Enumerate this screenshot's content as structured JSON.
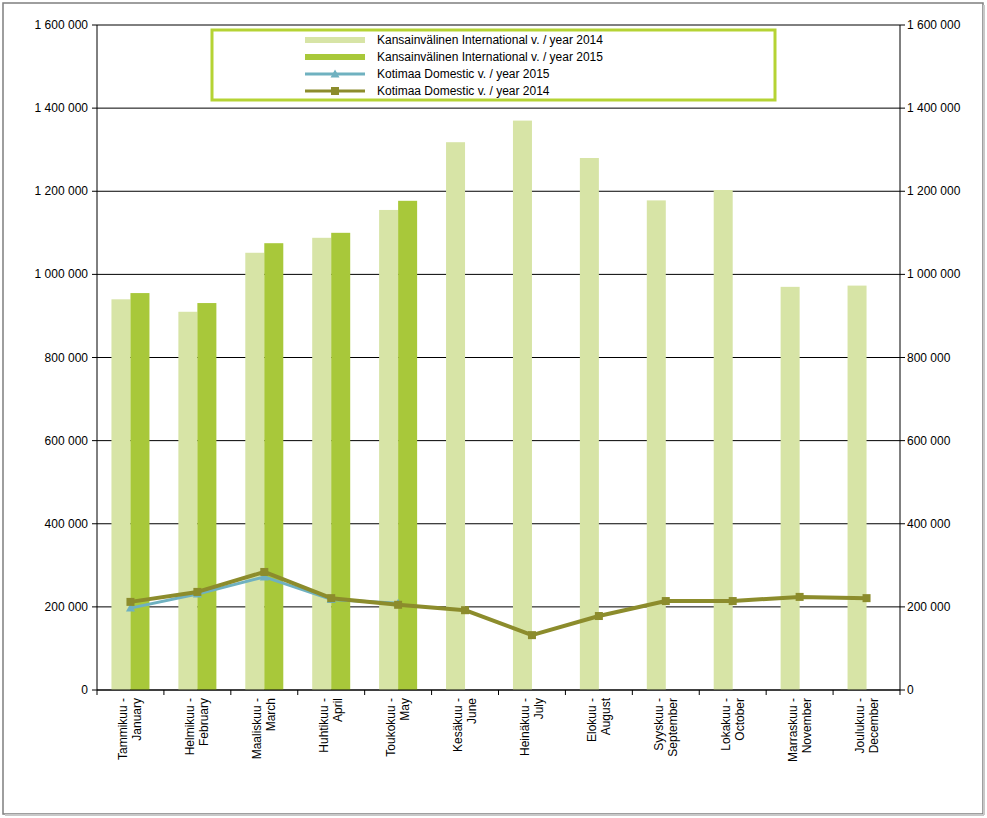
{
  "chart_data": {
    "type": "bar",
    "categories": [
      "Tammikuu - January",
      "Helmikuu - February",
      "Maaliskuu - March",
      "Huhtikuu - April",
      "Toukokuu - May",
      "Kesäkuu - June",
      "Heinäkuu - July",
      "Elokuu - August",
      "Syyskuu - September",
      "Lokakuu - October",
      "Marraskuu - November",
      "Joulukuu - December"
    ],
    "series": [
      {
        "name": "Kansainvälinen International v. / year 2014",
        "type": "bar",
        "color": "#d7e4a6",
        "values": [
          940000,
          910000,
          1052000,
          1088000,
          1155000,
          1318000,
          1370000,
          1280000,
          1178000,
          1203000,
          970000,
          973000
        ]
      },
      {
        "name": "Kansainvälinen International v. / year 2015",
        "type": "bar",
        "color": "#a8c83a",
        "values": [
          955000,
          931000,
          1075000,
          1100000,
          1177000,
          null,
          null,
          null,
          null,
          null,
          null,
          null
        ]
      },
      {
        "name": "Kotimaa Domestic v. / year 2015",
        "type": "line",
        "color": "#6fb1c0",
        "marker": "triangle",
        "values": [
          197000,
          231000,
          272000,
          218000,
          209000,
          null,
          null,
          null,
          null,
          null,
          null,
          null
        ]
      },
      {
        "name": "Kotimaa Domestic v. / year 2014",
        "type": "line",
        "color": "#8c8c2c",
        "marker": "square",
        "values": [
          212000,
          236000,
          284000,
          221000,
          205000,
          192000,
          132000,
          178000,
          214000,
          214000,
          224000,
          221000
        ]
      }
    ],
    "ylim": [
      0,
      1600000
    ],
    "yticks": [
      0,
      {
        "value": 200000,
        "label": "200 000"
      },
      {
        "value": 400000,
        "label": "400 000"
      },
      {
        "value": 600000,
        "label": "600 000"
      },
      {
        "value": 800000,
        "label": "800 000"
      },
      {
        "value": 1000000,
        "label": "1 000 000"
      },
      {
        "value": 1200000,
        "label": "1 200 000"
      },
      {
        "value": 1400000,
        "label": "1 400 000"
      },
      {
        "value": 1600000,
        "label": "1 600 000"
      }
    ],
    "grid": true,
    "legend": "top"
  }
}
